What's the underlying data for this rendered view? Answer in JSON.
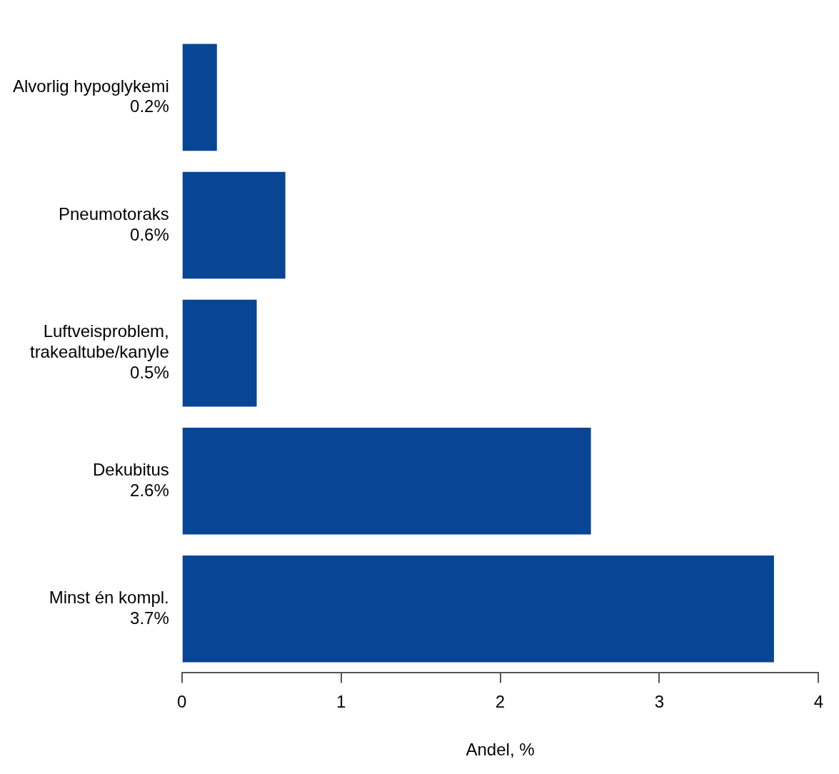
{
  "chart_data": {
    "type": "bar",
    "orientation": "horizontal",
    "xlabel": "Andel, %",
    "categories": [
      "Alvorlig hypoglykemi",
      "Pneumotoraks",
      "Luftveisproblem,\ntrakealtube/kanyle",
      "Dekubitus",
      "Minst én kompl."
    ],
    "values": [
      0.22,
      0.65,
      0.47,
      2.57,
      3.72
    ],
    "value_labels": [
      "0.2%",
      "0.6%",
      "0.5%",
      "2.6%",
      "3.7%"
    ],
    "color": "#084594",
    "xlim": [
      0,
      4
    ],
    "xticks": [
      0,
      1,
      2,
      3,
      4
    ]
  }
}
